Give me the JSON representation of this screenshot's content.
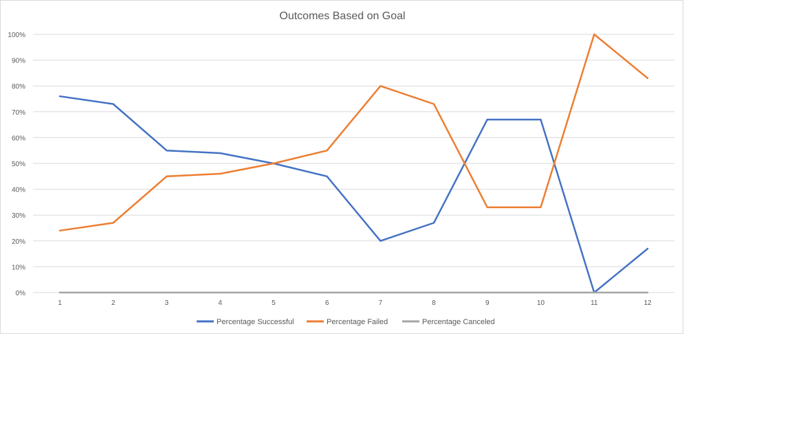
{
  "chart_data": {
    "type": "line",
    "title": "Outcomes Based on Goal",
    "xlabel": "",
    "ylabel": "",
    "categories": [
      "1",
      "2",
      "3",
      "4",
      "5",
      "6",
      "7",
      "8",
      "9",
      "10",
      "11",
      "12"
    ],
    "y_ticks": [
      "0%",
      "10%",
      "20%",
      "30%",
      "40%",
      "50%",
      "60%",
      "70%",
      "80%",
      "90%",
      "100%"
    ],
    "ylim": [
      0,
      100
    ],
    "grid": true,
    "legend_position": "bottom",
    "series": [
      {
        "name": "Percentage Successful",
        "color": "#4472C4",
        "values": [
          76,
          73,
          55,
          54,
          50,
          45,
          20,
          27,
          67,
          67,
          0,
          17
        ]
      },
      {
        "name": "Percentage Failed",
        "color": "#ED7D31",
        "values": [
          24,
          27,
          45,
          46,
          50,
          55,
          80,
          73,
          33,
          33,
          100,
          83
        ]
      },
      {
        "name": "Percentage Canceled",
        "color": "#A5A5A5",
        "values": [
          0,
          0,
          0,
          0,
          0,
          0,
          0,
          0,
          0,
          0,
          0,
          0
        ]
      }
    ]
  }
}
